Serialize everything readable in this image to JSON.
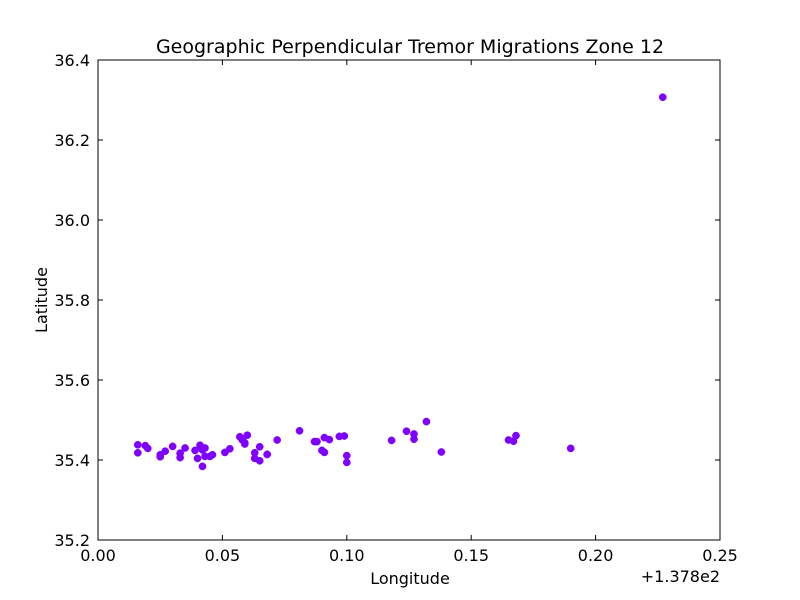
{
  "chart_data": {
    "type": "scatter",
    "title": "Geographic Perpendicular Tremor Migrations Zone 12",
    "xlabel": "Longitude",
    "ylabel": "Latitude",
    "x_offset_label": "+1.378e2",
    "xlim": [
      0.0,
      0.25
    ],
    "ylim": [
      35.2,
      36.4
    ],
    "x_ticks": [
      0.0,
      0.05,
      0.1,
      0.15,
      0.2,
      0.25
    ],
    "x_tick_labels": [
      "0.00",
      "0.05",
      "0.10",
      "0.15",
      "0.20",
      "0.25"
    ],
    "y_ticks": [
      35.2,
      35.4,
      35.6,
      35.8,
      36.0,
      36.2,
      36.4
    ],
    "y_tick_labels": [
      "35.2",
      "35.4",
      "35.6",
      "35.8",
      "36.0",
      "36.2",
      "36.4"
    ],
    "grid": false,
    "marker_color": "#7f00ff",
    "points": [
      {
        "x": 0.016,
        "y": 35.438
      },
      {
        "x": 0.016,
        "y": 35.418
      },
      {
        "x": 0.019,
        "y": 35.436
      },
      {
        "x": 0.02,
        "y": 35.429
      },
      {
        "x": 0.025,
        "y": 35.413
      },
      {
        "x": 0.025,
        "y": 35.408
      },
      {
        "x": 0.027,
        "y": 35.422
      },
      {
        "x": 0.03,
        "y": 35.434
      },
      {
        "x": 0.033,
        "y": 35.406
      },
      {
        "x": 0.033,
        "y": 35.417
      },
      {
        "x": 0.035,
        "y": 35.43
      },
      {
        "x": 0.039,
        "y": 35.424
      },
      {
        "x": 0.04,
        "y": 35.404
      },
      {
        "x": 0.041,
        "y": 35.437
      },
      {
        "x": 0.042,
        "y": 35.425
      },
      {
        "x": 0.043,
        "y": 35.43
      },
      {
        "x": 0.043,
        "y": 35.409
      },
      {
        "x": 0.042,
        "y": 35.384
      },
      {
        "x": 0.045,
        "y": 35.409
      },
      {
        "x": 0.046,
        "y": 35.413
      },
      {
        "x": 0.051,
        "y": 35.419
      },
      {
        "x": 0.053,
        "y": 35.428
      },
      {
        "x": 0.057,
        "y": 35.458
      },
      {
        "x": 0.058,
        "y": 35.45
      },
      {
        "x": 0.059,
        "y": 35.443
      },
      {
        "x": 0.059,
        "y": 35.44
      },
      {
        "x": 0.06,
        "y": 35.462
      },
      {
        "x": 0.063,
        "y": 35.404
      },
      {
        "x": 0.063,
        "y": 35.418
      },
      {
        "x": 0.065,
        "y": 35.398
      },
      {
        "x": 0.065,
        "y": 35.433
      },
      {
        "x": 0.068,
        "y": 35.414
      },
      {
        "x": 0.068,
        "y": 35.414
      },
      {
        "x": 0.072,
        "y": 35.45
      },
      {
        "x": 0.081,
        "y": 35.473
      },
      {
        "x": 0.087,
        "y": 35.446
      },
      {
        "x": 0.088,
        "y": 35.446
      },
      {
        "x": 0.09,
        "y": 35.424
      },
      {
        "x": 0.091,
        "y": 35.456
      },
      {
        "x": 0.091,
        "y": 35.419
      },
      {
        "x": 0.093,
        "y": 35.451
      },
      {
        "x": 0.097,
        "y": 35.459
      },
      {
        "x": 0.099,
        "y": 35.46
      },
      {
        "x": 0.1,
        "y": 35.411
      },
      {
        "x": 0.1,
        "y": 35.394
      },
      {
        "x": 0.118,
        "y": 35.449
      },
      {
        "x": 0.124,
        "y": 35.472
      },
      {
        "x": 0.127,
        "y": 35.465
      },
      {
        "x": 0.127,
        "y": 35.452
      },
      {
        "x": 0.132,
        "y": 35.496
      },
      {
        "x": 0.138,
        "y": 35.42
      },
      {
        "x": 0.165,
        "y": 35.45
      },
      {
        "x": 0.167,
        "y": 35.447
      },
      {
        "x": 0.168,
        "y": 35.461
      },
      {
        "x": 0.19,
        "y": 35.429
      },
      {
        "x": 0.227,
        "y": 36.307
      }
    ]
  }
}
